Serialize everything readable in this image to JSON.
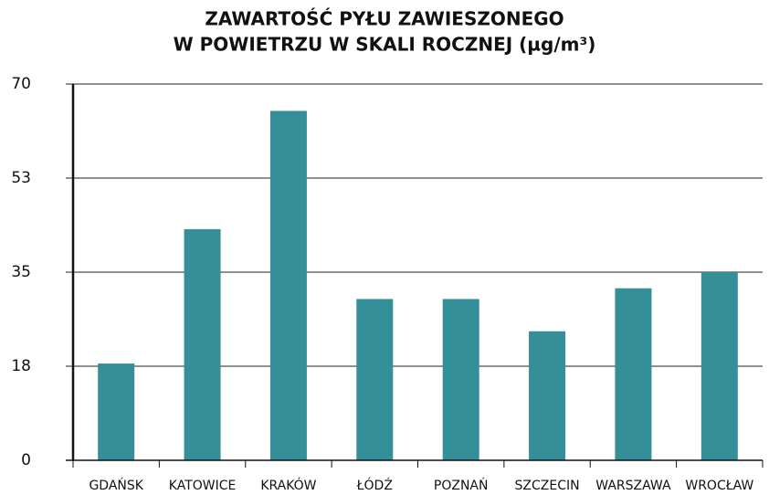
{
  "chart_data": {
    "type": "bar",
    "title": [
      "ZAWARTOŚĆ PYŁU ZAWIESZONEGO",
      "W POWIETRZU W SKALI ROCZNEJ (µg/m³)"
    ],
    "categories": [
      "GDAŃSK",
      "KATOWICE",
      "KRAKÓW",
      "ŁÓDŹ",
      "POZNAŃ",
      "SZCZECIN",
      "WARSZAWA",
      "WROCŁAW"
    ],
    "values": [
      18,
      43,
      65,
      30,
      30,
      24,
      32,
      35
    ],
    "color": "#358f98",
    "ylim": [
      0,
      70
    ],
    "yticks": [
      0,
      {
        "value": 17.5,
        "label": "18"
      },
      35,
      {
        "value": 52.5,
        "label": "53"
      },
      70
    ],
    "grid": true
  }
}
